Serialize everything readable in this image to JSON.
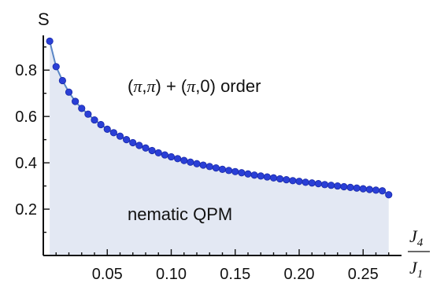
{
  "chart_data": {
    "type": "scatter",
    "ylabel": "S",
    "xlabel_num": "J",
    "xlabel_num_sub": "4",
    "xlabel_den": "J",
    "xlabel_den_sub": "1",
    "xlim": [
      0.0,
      0.28
    ],
    "ylim": [
      0.0,
      0.95
    ],
    "x_ticks": [
      0.05,
      0.1,
      0.15,
      0.2,
      0.25
    ],
    "x_tick_labels": [
      "0.05",
      "0.10",
      "0.15",
      "0.20",
      "0.25"
    ],
    "y_ticks": [
      0.2,
      0.4,
      0.6,
      0.8
    ],
    "y_tick_labels": [
      "0.2",
      "0.4",
      "0.6",
      "0.8"
    ],
    "annotations": {
      "upper_region": "(π,π) + (π,0) order",
      "lower_region": "nematic QPM"
    },
    "colors": {
      "points": "#2a3fd6",
      "point_edge": "#1a2aa8",
      "line": "#5a86c6",
      "fill": "#e3e8f3"
    },
    "series": [
      {
        "x": [
          0.005,
          0.01,
          0.015,
          0.02,
          0.025,
          0.03,
          0.035,
          0.04,
          0.045,
          0.05,
          0.055,
          0.06,
          0.065,
          0.07,
          0.075,
          0.08,
          0.085,
          0.09,
          0.095,
          0.1,
          0.105,
          0.11,
          0.115,
          0.12,
          0.125,
          0.13,
          0.135,
          0.14,
          0.145,
          0.15,
          0.155,
          0.16,
          0.165,
          0.17,
          0.175,
          0.18,
          0.185,
          0.19,
          0.195,
          0.2,
          0.205,
          0.21,
          0.215,
          0.22,
          0.225,
          0.23,
          0.235,
          0.24,
          0.245,
          0.25,
          0.255,
          0.26,
          0.265,
          0.27
        ],
        "y": [
          0.925,
          0.815,
          0.755,
          0.705,
          0.665,
          0.635,
          0.61,
          0.585,
          0.565,
          0.545,
          0.53,
          0.515,
          0.5,
          0.487,
          0.475,
          0.464,
          0.453,
          0.443,
          0.434,
          0.426,
          0.418,
          0.41,
          0.403,
          0.396,
          0.39,
          0.384,
          0.378,
          0.372,
          0.367,
          0.362,
          0.357,
          0.352,
          0.347,
          0.343,
          0.339,
          0.335,
          0.331,
          0.327,
          0.323,
          0.32,
          0.316,
          0.313,
          0.31,
          0.306,
          0.303,
          0.3,
          0.297,
          0.294,
          0.291,
          0.288,
          0.285,
          0.282,
          0.279,
          0.262
        ]
      }
    ]
  }
}
